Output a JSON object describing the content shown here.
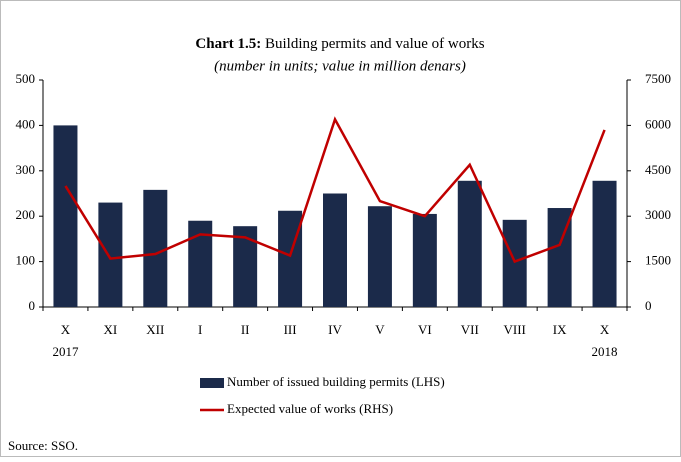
{
  "chart_data": {
    "type": "bar_line",
    "title_label": "Chart 1.5:",
    "title": "Building permits and value of works",
    "subtitle": "(number in units; value in million denars)",
    "categories": [
      "X",
      "XI",
      "XII",
      "I",
      "II",
      "III",
      "IV",
      "V",
      "VI",
      "VII",
      "VIII",
      "IX",
      "X"
    ],
    "category_years": [
      "2017",
      null,
      null,
      null,
      null,
      null,
      null,
      null,
      null,
      null,
      null,
      null,
      "2018"
    ],
    "series": [
      {
        "name": "Number of issued building permits (LHS)",
        "color": "#1b2a4a",
        "kind": "bar",
        "values": [
          400,
          230,
          258,
          190,
          178,
          212,
          250,
          222,
          205,
          278,
          192,
          218,
          278
        ]
      },
      {
        "name": "Expected value of works (RHS)",
        "color": "#c00000",
        "kind": "line",
        "axis": "y2",
        "values": [
          4000,
          1600,
          1750,
          2400,
          2300,
          1700,
          6200,
          3500,
          3000,
          4700,
          1500,
          2050,
          5850
        ]
      }
    ],
    "ylim": [
      0,
      500
    ],
    "yticks": [
      0,
      100,
      200,
      300,
      400,
      500
    ],
    "y2lim": [
      0,
      7500
    ],
    "y2ticks": [
      0,
      1500,
      3000,
      4500,
      6000,
      7500
    ],
    "source": "Source: SSO."
  }
}
